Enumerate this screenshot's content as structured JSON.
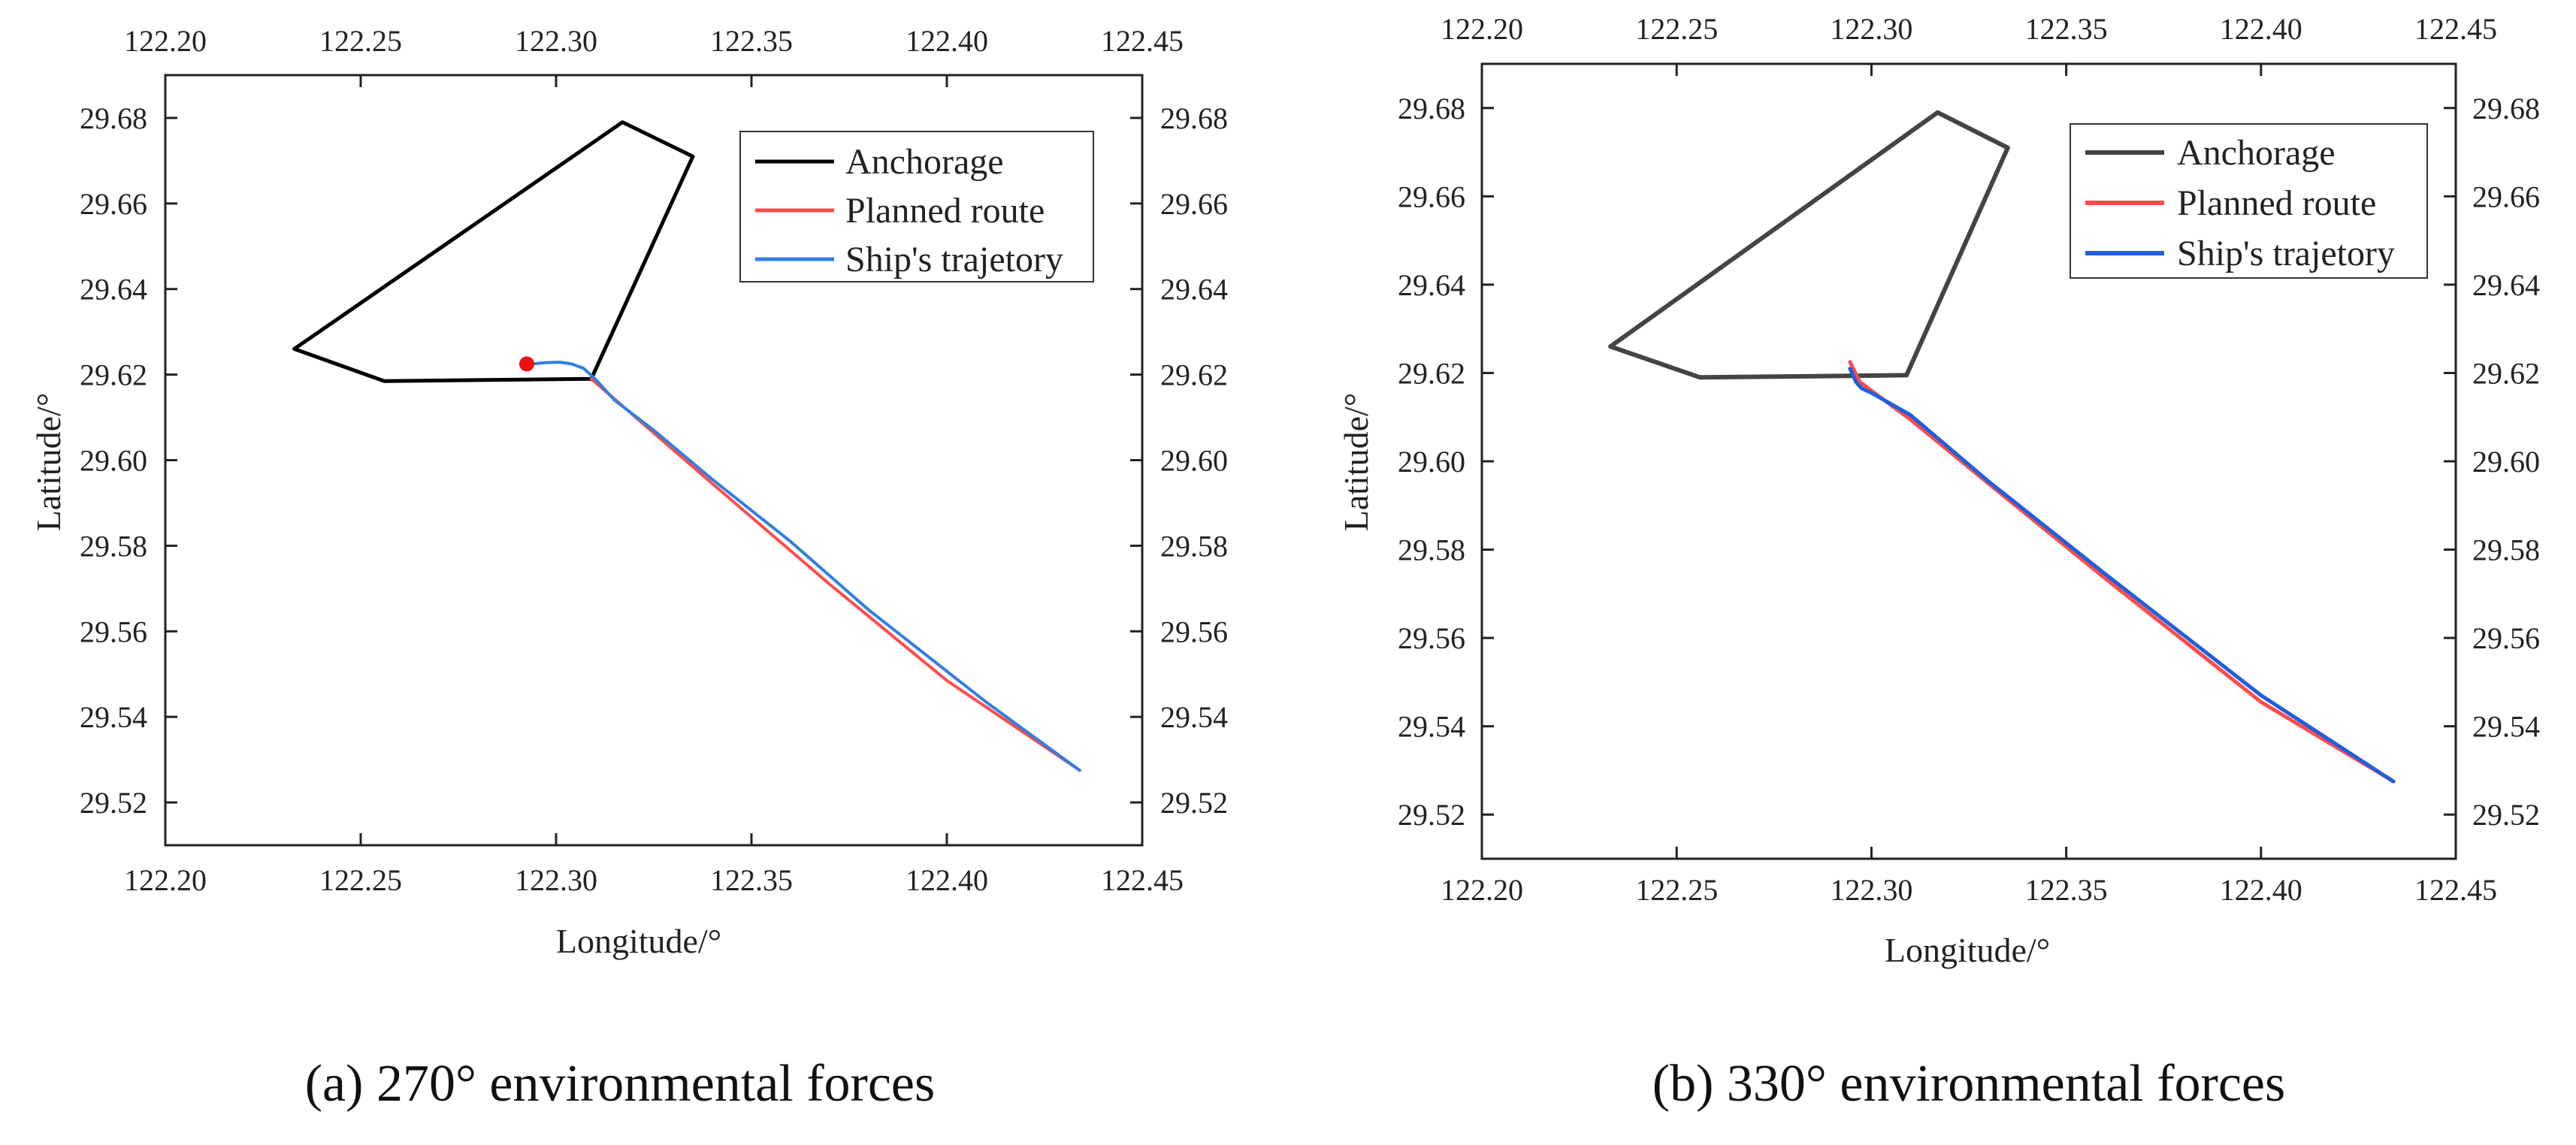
{
  "chart_data": [
    {
      "id": "a",
      "type": "line",
      "caption": "(a) 270° environmental forces",
      "xlabel": "Longitude/°",
      "ylabel": "Latitude/°",
      "xlim": [
        122.2,
        122.45
      ],
      "ylim": [
        29.51,
        29.69
      ],
      "x_ticks": [
        "122.20",
        "122.25",
        "122.30",
        "122.35",
        "122.40",
        "122.45"
      ],
      "y_ticks": [
        "29.52",
        "29.54",
        "29.56",
        "29.58",
        "29.60",
        "29.62",
        "29.64",
        "29.66",
        "29.68"
      ],
      "legend": [
        "Anchorage",
        "Planned route",
        "Ship's trajetory"
      ],
      "series": [
        {
          "name": "Anchorage",
          "color": "#000000",
          "closed": true,
          "x": [
            122.317,
            122.335,
            122.309,
            122.256,
            122.233
          ],
          "y": [
            29.679,
            29.671,
            29.619,
            29.6185,
            29.626
          ]
        },
        {
          "name": "Planned route",
          "color": "#ff4b4b",
          "x": [
            122.309,
            122.34,
            122.37,
            122.4,
            122.434
          ],
          "y": [
            29.619,
            29.5945,
            29.571,
            29.5485,
            29.5275
          ]
        },
        {
          "name": "Ship's trajetory",
          "color": "#2f7fe0",
          "x": [
            122.294,
            122.297,
            122.301,
            122.304,
            122.307,
            122.31,
            122.315,
            122.325,
            122.34,
            122.36,
            122.38,
            122.41,
            122.434
          ],
          "y": [
            29.6225,
            29.6228,
            29.6229,
            29.6225,
            29.6215,
            29.619,
            29.614,
            29.607,
            29.5955,
            29.581,
            29.565,
            29.5435,
            29.5275
          ]
        }
      ],
      "markers": [
        {
          "name": "start point",
          "x": 122.2925,
          "y": 29.6225,
          "color": "#ee1111"
        }
      ]
    },
    {
      "id": "b",
      "type": "line",
      "caption": "(b) 330° environmental forces",
      "xlabel": "Longitude/°",
      "ylabel": "Latitude/°",
      "xlim": [
        122.2,
        122.45
      ],
      "ylim": [
        29.51,
        29.69
      ],
      "x_ticks": [
        "122.20",
        "122.25",
        "122.30",
        "122.35",
        "122.40",
        "122.45"
      ],
      "y_ticks": [
        "29.52",
        "29.54",
        "29.56",
        "29.58",
        "29.60",
        "29.62",
        "29.64",
        "29.66",
        "29.68"
      ],
      "legend": [
        "Anchorage",
        "Planned route",
        "Ship's trajetory"
      ],
      "series": [
        {
          "name": "Anchorage",
          "color": "#444444",
          "closed": true,
          "x": [
            122.317,
            122.335,
            122.309,
            122.256,
            122.233
          ],
          "y": [
            29.679,
            29.671,
            29.6195,
            29.619,
            29.626
          ]
        },
        {
          "name": "Planned route",
          "color": "#ff4b4b",
          "x": [
            122.2945,
            122.297,
            122.3,
            122.31,
            122.33,
            122.36,
            122.4,
            122.434
          ],
          "y": [
            29.6225,
            29.618,
            29.616,
            29.6095,
            29.595,
            29.5735,
            29.5455,
            29.5275
          ]
        },
        {
          "name": "Ship's trajetory",
          "color": "#1f5fdc",
          "x": [
            122.2945,
            122.296,
            122.2975,
            122.3,
            122.31,
            122.33,
            122.36,
            122.4,
            122.434
          ],
          "y": [
            29.621,
            29.618,
            29.6165,
            29.6155,
            29.6105,
            29.5955,
            29.5745,
            29.547,
            29.5275
          ]
        }
      ],
      "markers": []
    }
  ]
}
